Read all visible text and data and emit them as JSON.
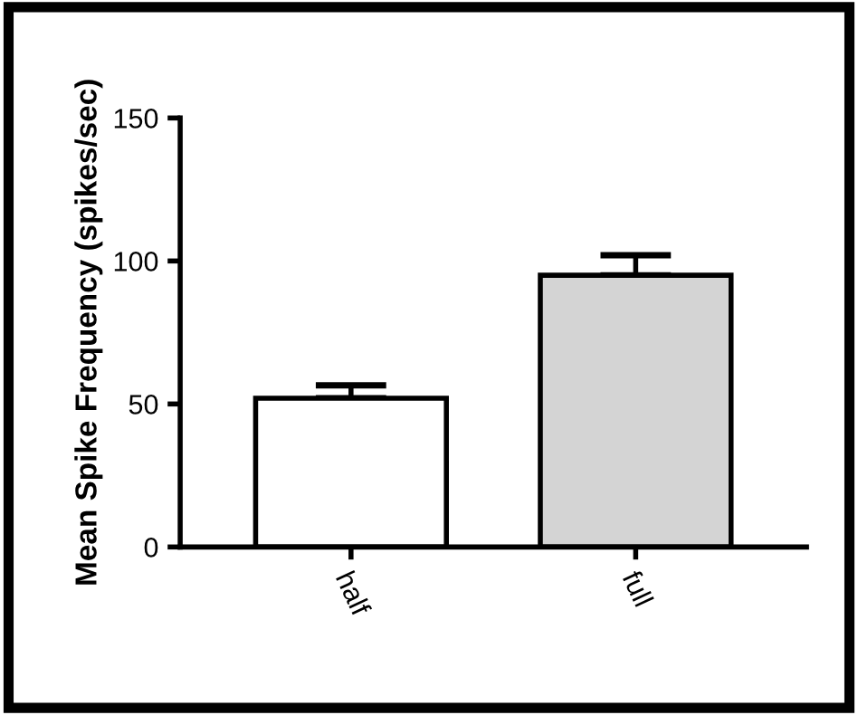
{
  "chart_data": {
    "type": "bar",
    "ylabel": "Mean Spike Frequency (spikes/sec)",
    "categories": [
      "half",
      "full"
    ],
    "values": [
      52,
      95
    ],
    "errors": [
      4.5,
      7
    ],
    "colors": [
      "#ffffff",
      "#d4d4d4"
    ],
    "ylim": [
      0,
      150
    ],
    "yticks": [
      0,
      50,
      100,
      150
    ],
    "grid": false,
    "legend": false
  }
}
